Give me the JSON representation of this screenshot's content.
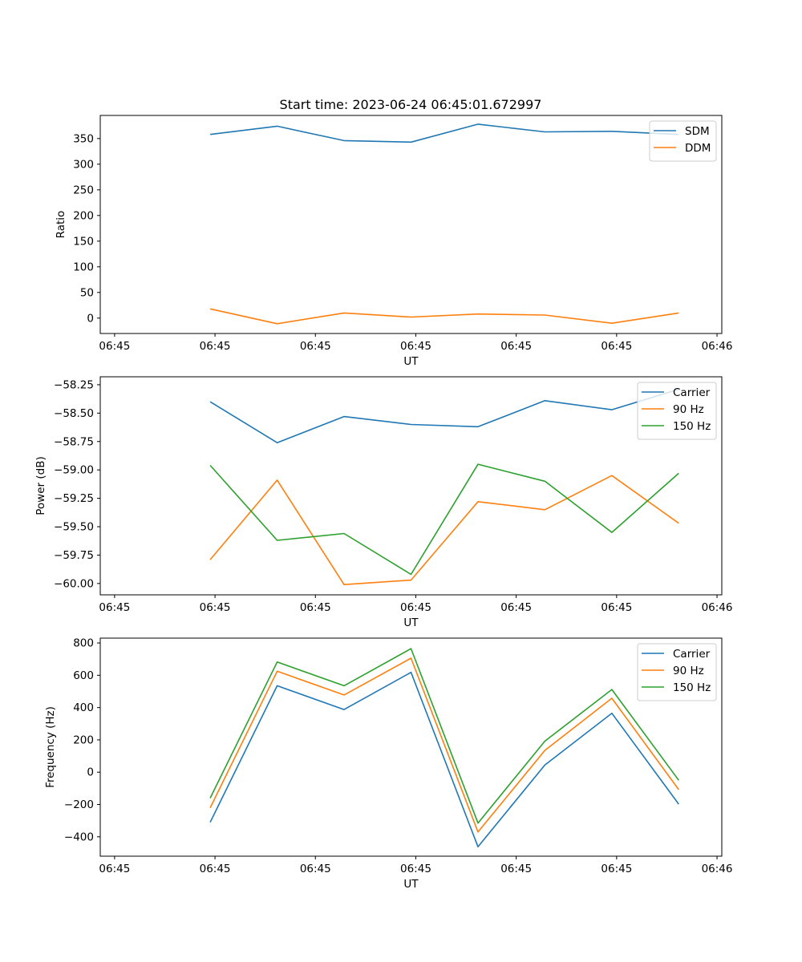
{
  "title": "Start time: 2023-06-24 06:45:01.672997",
  "chart_data": [
    {
      "type": "line",
      "id": "ratio",
      "xlabel": "UT",
      "ylabel": "Ratio",
      "x": [
        1.0,
        1.7,
        2.4,
        3.1,
        3.8,
        4.5,
        5.2,
        5.9
      ],
      "xlim": [
        -0.15,
        6.35
      ],
      "xticks": [
        0,
        1.05,
        2.1,
        3.15,
        4.2,
        5.25,
        6.3
      ],
      "xticklabels": [
        "06:45",
        "06:45",
        "06:45",
        "06:45",
        "06:45",
        "06:45",
        "06:46"
      ],
      "ylim": [
        -30,
        395
      ],
      "yticks": [
        0,
        50,
        100,
        150,
        200,
        250,
        300,
        350
      ],
      "yticklabels": [
        "0",
        "50",
        "100",
        "150",
        "200",
        "250",
        "300",
        "350"
      ],
      "legend": "top-right",
      "series": [
        {
          "name": "SDM",
          "color": "#1f77b4",
          "values": [
            358,
            374,
            346,
            343,
            378,
            363,
            364,
            358
          ]
        },
        {
          "name": "DDM",
          "color": "#ff7f0e",
          "values": [
            18,
            -11,
            10,
            2,
            8,
            6,
            -10,
            10
          ]
        }
      ]
    },
    {
      "type": "line",
      "id": "power",
      "xlabel": "UT",
      "ylabel": "Power (dB)",
      "x": [
        1.0,
        1.7,
        2.4,
        3.1,
        3.8,
        4.5,
        5.2,
        5.9
      ],
      "xlim": [
        -0.15,
        6.35
      ],
      "xticks": [
        0,
        1.05,
        2.1,
        3.15,
        4.2,
        5.25,
        6.3
      ],
      "xticklabels": [
        "06:45",
        "06:45",
        "06:45",
        "06:45",
        "06:45",
        "06:45",
        "06:46"
      ],
      "ylim": [
        -60.1,
        -58.18
      ],
      "yticks": [
        -60.0,
        -59.75,
        -59.5,
        -59.25,
        -59.0,
        -58.75,
        -58.5,
        -58.25
      ],
      "yticklabels": [
        "−60.00",
        "−59.75",
        "−59.50",
        "−59.25",
        "−59.00",
        "−58.75",
        "−58.50",
        "−58.25"
      ],
      "legend": "top-right",
      "series": [
        {
          "name": "Carrier",
          "color": "#1f77b4",
          "values": [
            -58.4,
            -58.76,
            -58.53,
            -58.6,
            -58.62,
            -58.39,
            -58.47,
            -58.29
          ]
        },
        {
          "name": "90 Hz",
          "color": "#ff7f0e",
          "values": [
            -59.79,
            -59.09,
            -60.01,
            -59.97,
            -59.28,
            -59.35,
            -59.05,
            -59.47
          ]
        },
        {
          "name": "150 Hz",
          "color": "#2ca02c",
          "values": [
            -58.96,
            -59.62,
            -59.56,
            -59.92,
            -58.95,
            -59.1,
            -59.55,
            -59.03
          ]
        }
      ]
    },
    {
      "type": "line",
      "id": "frequency",
      "xlabel": "UT",
      "ylabel": "Frequency (Hz)",
      "x": [
        1.0,
        1.7,
        2.4,
        3.1,
        3.8,
        4.5,
        5.2,
        5.9
      ],
      "xlim": [
        -0.15,
        6.35
      ],
      "xticks": [
        0,
        1.05,
        2.1,
        3.15,
        4.2,
        5.25,
        6.3
      ],
      "xticklabels": [
        "06:45",
        "06:45",
        "06:45",
        "06:45",
        "06:45",
        "06:45",
        "06:46"
      ],
      "ylim": [
        -520,
        830
      ],
      "yticks": [
        -400,
        -200,
        0,
        200,
        400,
        600,
        800
      ],
      "yticklabels": [
        "−400",
        "−200",
        "0",
        "200",
        "400",
        "600",
        "800"
      ],
      "legend": "top-right",
      "series": [
        {
          "name": "Carrier",
          "color": "#1f77b4",
          "values": [
            -310,
            535,
            388,
            618,
            -462,
            45,
            365,
            -198
          ]
        },
        {
          "name": "90 Hz",
          "color": "#ff7f0e",
          "values": [
            -220,
            625,
            478,
            706,
            -370,
            135,
            458,
            -108
          ]
        },
        {
          "name": "150 Hz",
          "color": "#2ca02c",
          "values": [
            -160,
            682,
            535,
            765,
            -315,
            192,
            512,
            -50
          ]
        }
      ]
    }
  ]
}
